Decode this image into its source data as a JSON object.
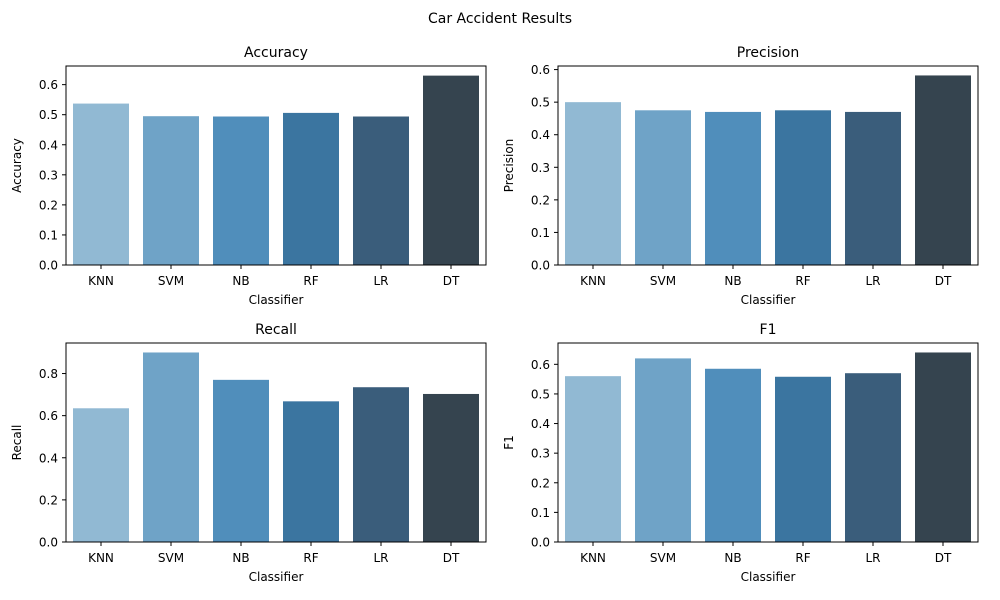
{
  "figure": {
    "title": "Car Accident Results"
  },
  "palette": [
    "#91b9d3",
    "#6fa3c7",
    "#508ebb",
    "#3b75a0",
    "#3a5d7b",
    "#35444f"
  ],
  "chart_data": [
    {
      "type": "bar",
      "title": "Accuracy",
      "xlabel": "Classifier",
      "ylabel": "Accuracy",
      "categories": [
        "KNN",
        "SVM",
        "NB",
        "RF",
        "LR",
        "DT"
      ],
      "values": [
        0.537,
        0.495,
        0.494,
        0.506,
        0.494,
        0.63
      ],
      "ylim": [
        0,
        0.662
      ],
      "yticks": [
        0.0,
        0.1,
        0.2,
        0.3,
        0.4,
        0.5,
        0.6
      ],
      "ytick_labels": [
        "0.0",
        "0.1",
        "0.2",
        "0.3",
        "0.4",
        "0.5",
        "0.6"
      ],
      "grid": false
    },
    {
      "type": "bar",
      "title": "Precision",
      "xlabel": "Classifier",
      "ylabel": "Precision",
      "categories": [
        "KNN",
        "SVM",
        "NB",
        "RF",
        "LR",
        "DT"
      ],
      "values": [
        0.5,
        0.475,
        0.47,
        0.475,
        0.47,
        0.582
      ],
      "ylim": [
        0,
        0.611
      ],
      "yticks": [
        0.0,
        0.1,
        0.2,
        0.3,
        0.4,
        0.5,
        0.6
      ],
      "ytick_labels": [
        "0.0",
        "0.1",
        "0.2",
        "0.3",
        "0.4",
        "0.5",
        "0.6"
      ],
      "grid": false
    },
    {
      "type": "bar",
      "title": "Recall",
      "xlabel": "Classifier",
      "ylabel": "Recall",
      "categories": [
        "KNN",
        "SVM",
        "NB",
        "RF",
        "LR",
        "DT"
      ],
      "values": [
        0.635,
        0.9,
        0.77,
        0.668,
        0.735,
        0.703
      ],
      "ylim": [
        0,
        0.945
      ],
      "yticks": [
        0.0,
        0.2,
        0.4,
        0.6,
        0.8
      ],
      "ytick_labels": [
        "0.0",
        "0.2",
        "0.4",
        "0.6",
        "0.8"
      ],
      "grid": false
    },
    {
      "type": "bar",
      "title": "F1",
      "xlabel": "Classifier",
      "ylabel": "F1",
      "categories": [
        "KNN",
        "SVM",
        "NB",
        "RF",
        "LR",
        "DT"
      ],
      "values": [
        0.56,
        0.62,
        0.585,
        0.558,
        0.57,
        0.64
      ],
      "ylim": [
        0,
        0.672
      ],
      "yticks": [
        0.0,
        0.1,
        0.2,
        0.3,
        0.4,
        0.5,
        0.6
      ],
      "ytick_labels": [
        "0.0",
        "0.1",
        "0.2",
        "0.3",
        "0.4",
        "0.5",
        "0.6"
      ],
      "grid": false
    }
  ]
}
